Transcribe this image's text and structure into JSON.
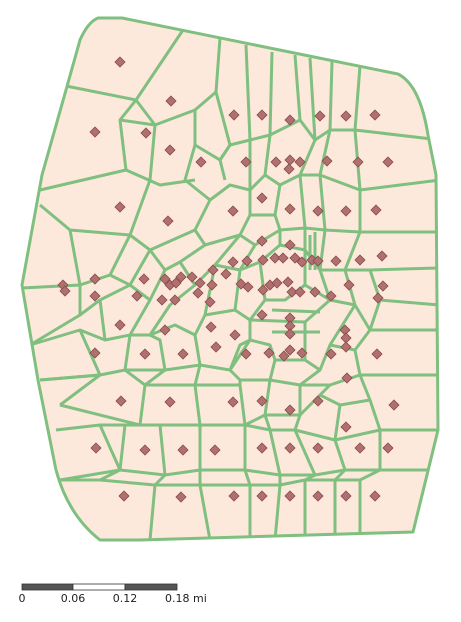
{
  "map": {
    "land_fill": "#fde8dc",
    "edge_color": "#7fbf7f",
    "marker_color": "#b07070",
    "marker_shape": "diamond",
    "cell_type": "voronoi"
  },
  "scalebar": {
    "labels": [
      "0",
      "0.06",
      "0.12",
      "0.18 mi"
    ],
    "colors": [
      "#555555",
      "#ffffff",
      "#555555"
    ]
  }
}
